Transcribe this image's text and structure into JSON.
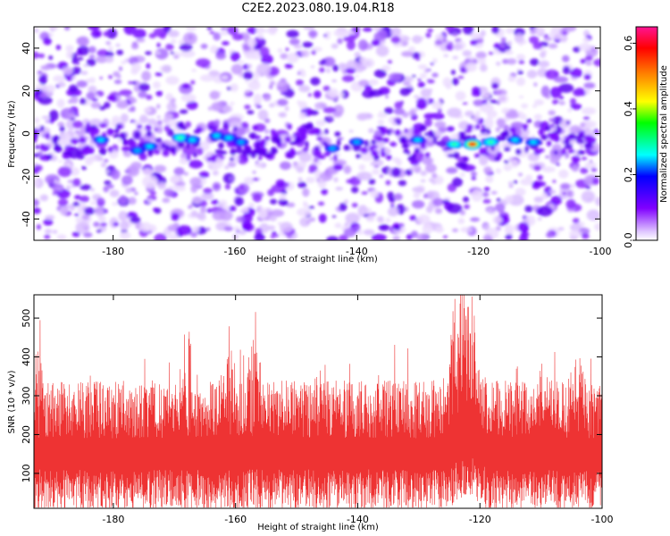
{
  "title": "C2E2.2023.080.19.04.R18",
  "chart_data": [
    {
      "type": "heatmap",
      "xlabel": "Height of straight line (km)",
      "ylabel": "Frequency (Hz)",
      "xlim": [
        -193,
        -100
      ],
      "ylim": [
        -50,
        50
      ],
      "xticks": [
        -180,
        -160,
        -140,
        -120,
        -100
      ],
      "yticks": [
        -40,
        -20,
        0,
        20,
        40
      ],
      "colorbar": {
        "label": "Normalized spectral amplitude",
        "range": [
          0.0,
          0.65
        ],
        "ticks": [
          0.0,
          0.2,
          0.4,
          0.6
        ],
        "colors": [
          "#ffffff",
          "#d8b4ff",
          "#8000ff",
          "#0000ff",
          "#00ffff",
          "#00ff00",
          "#ffff00",
          "#ff8000",
          "#ff0000",
          "#ff1493"
        ]
      },
      "strong_features": [
        {
          "x": -182,
          "y": -3,
          "amp": 0.22
        },
        {
          "x": -176,
          "y": -8,
          "amp": 0.2
        },
        {
          "x": -174,
          "y": -6,
          "amp": 0.24
        },
        {
          "x": -169,
          "y": -2,
          "amp": 0.28
        },
        {
          "x": -167,
          "y": -3,
          "amp": 0.25
        },
        {
          "x": -163,
          "y": -1,
          "amp": 0.23
        },
        {
          "x": -161,
          "y": -2,
          "amp": 0.26
        },
        {
          "x": -159,
          "y": -4,
          "amp": 0.2
        },
        {
          "x": -144,
          "y": -7,
          "amp": 0.18
        },
        {
          "x": -140,
          "y": -4,
          "amp": 0.19
        },
        {
          "x": -130,
          "y": -3,
          "amp": 0.22
        },
        {
          "x": -124,
          "y": -5,
          "amp": 0.3
        },
        {
          "x": -121,
          "y": -5,
          "amp": 0.48
        },
        {
          "x": -118,
          "y": -4,
          "amp": 0.3
        },
        {
          "x": -114,
          "y": -3,
          "amp": 0.26
        },
        {
          "x": -111,
          "y": -4,
          "amp": 0.22
        }
      ]
    },
    {
      "type": "line",
      "xlabel": "Height of straight line (km)",
      "ylabel": "SNR (10 * v/v)",
      "xlim": [
        -193,
        -100
      ],
      "ylim": [
        10,
        560
      ],
      "xticks": [
        -180,
        -160,
        -140,
        -120,
        -100
      ],
      "yticks": [
        100,
        200,
        300,
        400,
        500
      ],
      "color": "#ee3333",
      "baseline": 150,
      "peaks": [
        {
          "x": -192.5,
          "y": 410
        },
        {
          "x": -168,
          "y": 505
        },
        {
          "x": -161,
          "y": 470
        },
        {
          "x": -157,
          "y": 480
        },
        {
          "x": -146,
          "y": 405
        },
        {
          "x": -124,
          "y": 555
        },
        {
          "x": -123,
          "y": 520
        },
        {
          "x": -121.5,
          "y": 500
        },
        {
          "x": -110,
          "y": 380
        },
        {
          "x": -104,
          "y": 430
        }
      ]
    }
  ]
}
